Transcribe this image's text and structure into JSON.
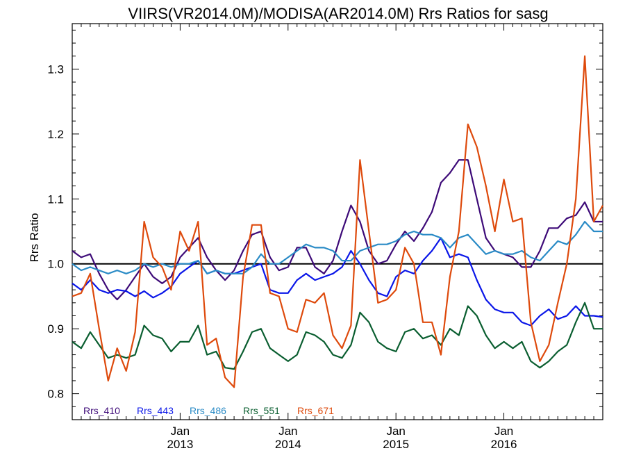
{
  "chart_data": {
    "type": "line",
    "title": "VIIRS(VR2014.0M)/MODISA(AR2014.0M)  Rrs Ratios for sasg",
    "ylabel": "Rrs Ratio",
    "xlabel": "",
    "xlim": [
      "2012-01",
      "2016-12"
    ],
    "ylim": [
      0.76,
      1.37
    ],
    "y_ticks": [
      "0.8",
      "0.9",
      "1.0",
      "1.1",
      "1.2",
      "1.3"
    ],
    "x_ticks": [
      {
        "date": "2013-01",
        "line1": "Jan",
        "line2": "2013"
      },
      {
        "date": "2014-01",
        "line1": "Jan",
        "line2": "2014"
      },
      {
        "date": "2015-01",
        "line1": "Jan",
        "line2": "2015"
      },
      {
        "date": "2016-01",
        "line1": "Jan",
        "line2": "2016"
      }
    ],
    "reference_line": 1.0,
    "grid": false,
    "legend_placement": "bottom-left",
    "x": [
      "2012-01",
      "2012-02",
      "2012-03",
      "2012-04",
      "2012-05",
      "2012-06",
      "2012-07",
      "2012-08",
      "2012-09",
      "2012-10",
      "2012-11",
      "2012-12",
      "2013-01",
      "2013-02",
      "2013-03",
      "2013-04",
      "2013-05",
      "2013-06",
      "2013-07",
      "2013-08",
      "2013-09",
      "2013-10",
      "2013-11",
      "2013-12",
      "2014-01",
      "2014-02",
      "2014-03",
      "2014-04",
      "2014-05",
      "2014-06",
      "2014-07",
      "2014-08",
      "2014-09",
      "2014-10",
      "2014-11",
      "2014-12",
      "2015-01",
      "2015-02",
      "2015-03",
      "2015-04",
      "2015-05",
      "2015-06",
      "2015-07",
      "2015-08",
      "2015-09",
      "2015-10",
      "2015-11",
      "2015-12",
      "2016-01",
      "2016-02",
      "2016-03",
      "2016-04",
      "2016-05",
      "2016-06",
      "2016-07",
      "2016-08",
      "2016-09",
      "2016-10",
      "2016-11",
      "2016-12"
    ],
    "series": [
      {
        "name": "Rrs_410",
        "color": "#3d0a78",
        "values": [
          1.02,
          1.01,
          1.015,
          0.985,
          0.96,
          0.945,
          0.96,
          0.98,
          1.0,
          0.98,
          0.97,
          0.98,
          1.01,
          1.025,
          1.04,
          1.01,
          0.99,
          0.975,
          0.99,
          1.02,
          1.045,
          1.05,
          1.01,
          0.99,
          0.995,
          1.025,
          1.025,
          0.995,
          0.985,
          1.005,
          1.05,
          1.09,
          1.065,
          1.02,
          1.0,
          1.005,
          1.03,
          1.05,
          1.035,
          1.055,
          1.08,
          1.125,
          1.14,
          1.16,
          1.16,
          1.1,
          1.04,
          1.02,
          1.015,
          1.01,
          0.995,
          0.995,
          1.02,
          1.055,
          1.055,
          1.07,
          1.075,
          1.095,
          1.065,
          1.065
        ]
      },
      {
        "name": "Rrs_443",
        "color": "#0a16e8",
        "values": [
          0.97,
          0.96,
          0.975,
          0.96,
          0.955,
          0.96,
          0.958,
          0.95,
          0.958,
          0.948,
          0.955,
          0.965,
          0.985,
          0.995,
          1.005,
          0.985,
          0.99,
          0.985,
          0.985,
          0.99,
          0.995,
          1.0,
          0.96,
          0.955,
          0.955,
          0.975,
          0.985,
          0.975,
          0.98,
          0.985,
          0.995,
          1.02,
          1.0,
          0.975,
          0.955,
          0.95,
          0.98,
          0.99,
          0.985,
          1.005,
          1.02,
          1.04,
          1.01,
          1.015,
          1.01,
          0.975,
          0.945,
          0.93,
          0.925,
          0.925,
          0.91,
          0.905,
          0.92,
          0.93,
          0.915,
          0.92,
          0.935,
          0.92,
          0.92,
          0.918
        ]
      },
      {
        "name": "Rrs_486",
        "color": "#2a8bc6",
        "values": [
          1.0,
          0.99,
          0.995,
          0.99,
          0.985,
          0.99,
          0.985,
          0.99,
          1.0,
          0.995,
          1.0,
          0.995,
          1.0,
          1.0,
          1.005,
          0.985,
          0.99,
          0.985,
          0.985,
          0.985,
          0.995,
          1.015,
          1.0,
          1.0,
          1.01,
          1.02,
          1.03,
          1.025,
          1.025,
          1.02,
          1.005,
          1.005,
          1.02,
          1.025,
          1.03,
          1.03,
          1.035,
          1.045,
          1.05,
          1.045,
          1.045,
          1.04,
          1.025,
          1.04,
          1.045,
          1.03,
          1.015,
          1.02,
          1.015,
          1.015,
          1.02,
          1.01,
          1.005,
          1.02,
          1.035,
          1.03,
          1.045,
          1.065,
          1.05,
          1.05
        ]
      },
      {
        "name": "Rrs_551",
        "color": "#0a5e30",
        "values": [
          0.88,
          0.87,
          0.895,
          0.875,
          0.855,
          0.86,
          0.855,
          0.86,
          0.905,
          0.89,
          0.885,
          0.865,
          0.88,
          0.88,
          0.905,
          0.86,
          0.865,
          0.84,
          0.838,
          0.865,
          0.895,
          0.9,
          0.87,
          0.86,
          0.85,
          0.86,
          0.895,
          0.89,
          0.88,
          0.86,
          0.855,
          0.875,
          0.925,
          0.91,
          0.88,
          0.87,
          0.865,
          0.895,
          0.9,
          0.885,
          0.89,
          0.875,
          0.9,
          0.89,
          0.935,
          0.92,
          0.89,
          0.87,
          0.88,
          0.87,
          0.88,
          0.85,
          0.84,
          0.85,
          0.865,
          0.875,
          0.91,
          0.94,
          0.9,
          0.9
        ]
      },
      {
        "name": "Rrs_671",
        "color": "#de4a0c",
        "values": [
          0.95,
          0.955,
          0.985,
          0.9,
          0.82,
          0.87,
          0.835,
          0.895,
          1.065,
          1.01,
          0.995,
          0.96,
          1.05,
          1.02,
          1.065,
          0.875,
          0.885,
          0.825,
          0.81,
          0.98,
          1.06,
          1.06,
          0.955,
          0.95,
          0.9,
          0.895,
          0.945,
          0.94,
          0.955,
          0.89,
          0.87,
          0.905,
          1.16,
          1.05,
          0.94,
          0.945,
          0.96,
          1.025,
          1.0,
          0.91,
          0.91,
          0.86,
          0.98,
          1.05,
          1.215,
          1.18,
          1.12,
          1.05,
          1.13,
          1.065,
          1.07,
          0.91,
          0.85,
          0.875,
          0.94,
          1.0,
          1.1,
          1.32,
          1.065,
          1.09
        ]
      }
    ]
  }
}
